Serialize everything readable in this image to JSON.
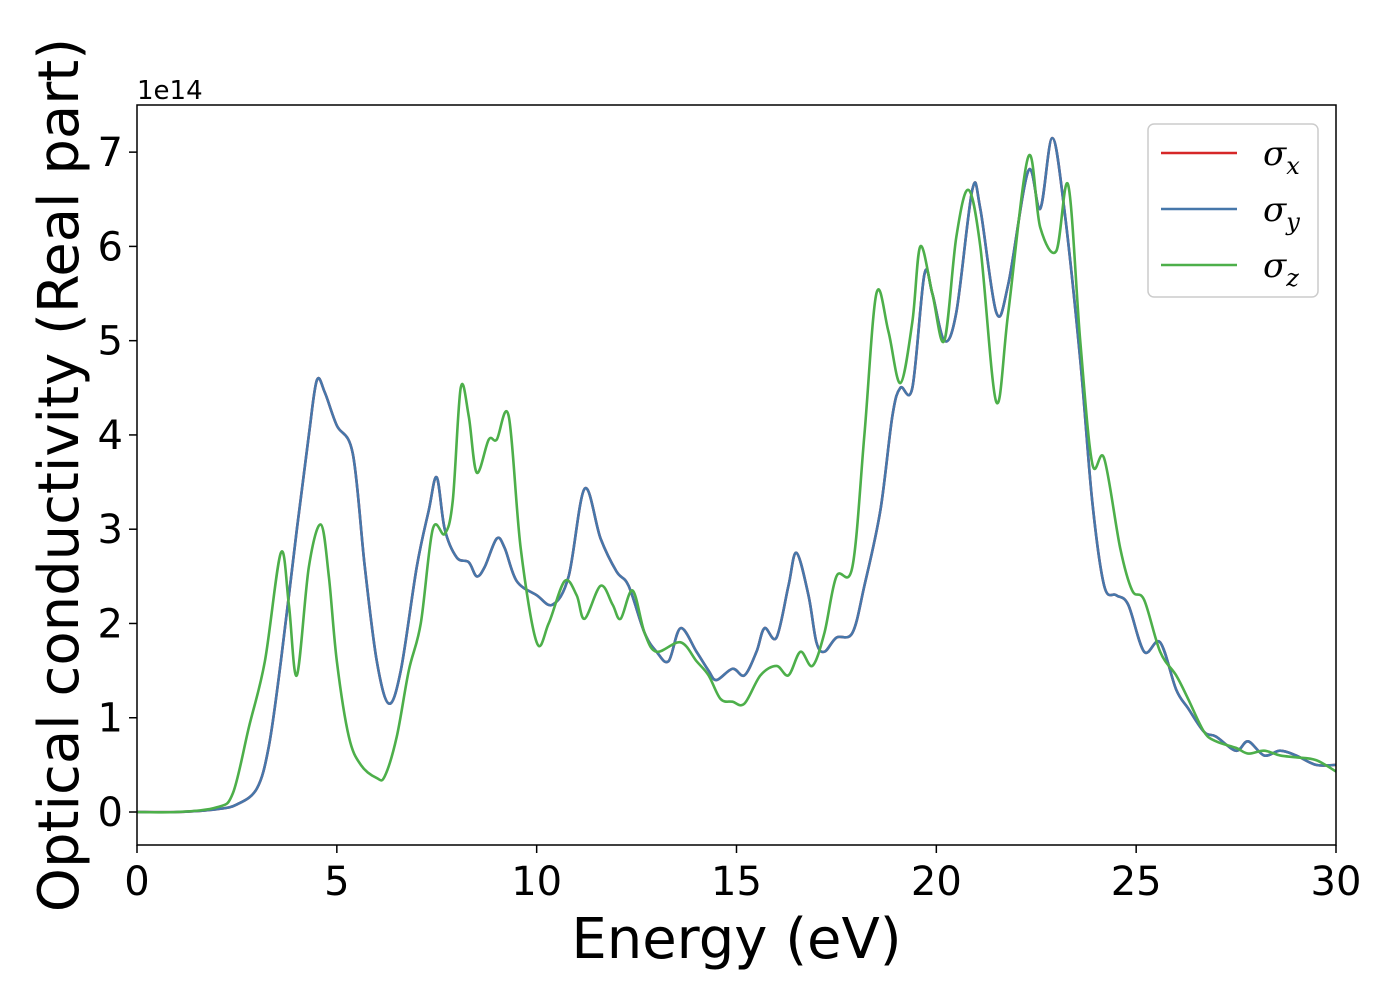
{
  "chart_data": {
    "type": "line",
    "title": "",
    "xlabel": "Energy (eV)",
    "ylabel": "Optical conductivity (Real part)",
    "y_offset_label": "1e14",
    "xlim": [
      0,
      30
    ],
    "ylim": [
      -0.35,
      7.5
    ],
    "xticks": [
      "0",
      "5",
      "10",
      "15",
      "20",
      "25",
      "30"
    ],
    "yticks": [
      "0",
      "1",
      "2",
      "3",
      "4",
      "5",
      "6",
      "7"
    ],
    "grid": false,
    "legend": "top-right",
    "series": [
      {
        "name": "σx",
        "legend_symbol": "σ",
        "legend_sub": "x",
        "color": "#d62728",
        "points": [
          [
            0,
            0
          ],
          [
            1,
            0
          ],
          [
            2,
            0.03
          ],
          [
            2.5,
            0.08
          ],
          [
            3,
            0.25
          ],
          [
            3.3,
            0.7
          ],
          [
            3.6,
            1.6
          ],
          [
            4,
            3.0
          ],
          [
            4.3,
            4.0
          ],
          [
            4.5,
            4.58
          ],
          [
            4.7,
            4.45
          ],
          [
            5,
            4.1
          ],
          [
            5.4,
            3.8
          ],
          [
            5.7,
            2.6
          ],
          [
            6,
            1.6
          ],
          [
            6.3,
            1.15
          ],
          [
            6.6,
            1.5
          ],
          [
            7,
            2.6
          ],
          [
            7.3,
            3.2
          ],
          [
            7.5,
            3.55
          ],
          [
            7.7,
            3.0
          ],
          [
            8,
            2.7
          ],
          [
            8.3,
            2.65
          ],
          [
            8.5,
            2.5
          ],
          [
            8.7,
            2.6
          ],
          [
            9,
            2.9
          ],
          [
            9.2,
            2.8
          ],
          [
            9.5,
            2.45
          ],
          [
            10,
            2.3
          ],
          [
            10.4,
            2.2
          ],
          [
            10.8,
            2.5
          ],
          [
            11.2,
            3.43
          ],
          [
            11.6,
            2.9
          ],
          [
            12,
            2.55
          ],
          [
            12.3,
            2.4
          ],
          [
            12.7,
            1.9
          ],
          [
            13,
            1.7
          ],
          [
            13.3,
            1.6
          ],
          [
            13.6,
            1.95
          ],
          [
            14,
            1.7
          ],
          [
            14.3,
            1.5
          ],
          [
            14.5,
            1.4
          ],
          [
            14.9,
            1.52
          ],
          [
            15.2,
            1.45
          ],
          [
            15.5,
            1.7
          ],
          [
            15.7,
            1.95
          ],
          [
            16,
            1.85
          ],
          [
            16.3,
            2.4
          ],
          [
            16.5,
            2.75
          ],
          [
            16.8,
            2.3
          ],
          [
            17,
            1.8
          ],
          [
            17.2,
            1.7
          ],
          [
            17.5,
            1.85
          ],
          [
            17.9,
            1.9
          ],
          [
            18.2,
            2.4
          ],
          [
            18.6,
            3.2
          ],
          [
            18.9,
            4.2
          ],
          [
            19.1,
            4.5
          ],
          [
            19.4,
            4.5
          ],
          [
            19.7,
            5.7
          ],
          [
            19.9,
            5.5
          ],
          [
            20.2,
            5.0
          ],
          [
            20.5,
            5.3
          ],
          [
            20.9,
            6.6
          ],
          [
            21.1,
            6.4
          ],
          [
            21.5,
            5.3
          ],
          [
            21.8,
            5.6
          ],
          [
            22.3,
            6.8
          ],
          [
            22.6,
            6.4
          ],
          [
            22.9,
            7.15
          ],
          [
            23.2,
            6.4
          ],
          [
            23.6,
            4.8
          ],
          [
            23.9,
            3.3
          ],
          [
            24.2,
            2.4
          ],
          [
            24.5,
            2.3
          ],
          [
            24.8,
            2.2
          ],
          [
            25.2,
            1.7
          ],
          [
            25.6,
            1.8
          ],
          [
            26,
            1.3
          ],
          [
            26.3,
            1.1
          ],
          [
            26.7,
            0.85
          ],
          [
            27,
            0.8
          ],
          [
            27.5,
            0.65
          ],
          [
            27.8,
            0.75
          ],
          [
            28.2,
            0.6
          ],
          [
            28.6,
            0.65
          ],
          [
            29,
            0.6
          ],
          [
            29.5,
            0.5
          ],
          [
            30,
            0.5
          ]
        ]
      },
      {
        "name": "σy",
        "legend_symbol": "σ",
        "legend_sub": "y",
        "color": "#4677aa",
        "points": [
          [
            0,
            0
          ],
          [
            1,
            0
          ],
          [
            2,
            0.03
          ],
          [
            2.5,
            0.08
          ],
          [
            3,
            0.25
          ],
          [
            3.3,
            0.7
          ],
          [
            3.6,
            1.6
          ],
          [
            4,
            3.0
          ],
          [
            4.3,
            4.0
          ],
          [
            4.5,
            4.58
          ],
          [
            4.7,
            4.45
          ],
          [
            5,
            4.1
          ],
          [
            5.4,
            3.8
          ],
          [
            5.7,
            2.6
          ],
          [
            6,
            1.6
          ],
          [
            6.3,
            1.15
          ],
          [
            6.6,
            1.5
          ],
          [
            7,
            2.6
          ],
          [
            7.3,
            3.2
          ],
          [
            7.5,
            3.55
          ],
          [
            7.7,
            3.0
          ],
          [
            8,
            2.7
          ],
          [
            8.3,
            2.65
          ],
          [
            8.5,
            2.5
          ],
          [
            8.7,
            2.6
          ],
          [
            9,
            2.9
          ],
          [
            9.2,
            2.8
          ],
          [
            9.5,
            2.45
          ],
          [
            10,
            2.3
          ],
          [
            10.4,
            2.2
          ],
          [
            10.8,
            2.5
          ],
          [
            11.2,
            3.43
          ],
          [
            11.6,
            2.9
          ],
          [
            12,
            2.55
          ],
          [
            12.3,
            2.4
          ],
          [
            12.7,
            1.9
          ],
          [
            13,
            1.7
          ],
          [
            13.3,
            1.6
          ],
          [
            13.6,
            1.95
          ],
          [
            14,
            1.7
          ],
          [
            14.3,
            1.5
          ],
          [
            14.5,
            1.4
          ],
          [
            14.9,
            1.52
          ],
          [
            15.2,
            1.45
          ],
          [
            15.5,
            1.7
          ],
          [
            15.7,
            1.95
          ],
          [
            16,
            1.85
          ],
          [
            16.3,
            2.4
          ],
          [
            16.5,
            2.75
          ],
          [
            16.8,
            2.3
          ],
          [
            17,
            1.8
          ],
          [
            17.2,
            1.7
          ],
          [
            17.5,
            1.85
          ],
          [
            17.9,
            1.9
          ],
          [
            18.2,
            2.4
          ],
          [
            18.6,
            3.2
          ],
          [
            18.9,
            4.2
          ],
          [
            19.1,
            4.5
          ],
          [
            19.4,
            4.5
          ],
          [
            19.7,
            5.7
          ],
          [
            19.9,
            5.5
          ],
          [
            20.2,
            5.0
          ],
          [
            20.5,
            5.3
          ],
          [
            20.9,
            6.6
          ],
          [
            21.1,
            6.4
          ],
          [
            21.5,
            5.3
          ],
          [
            21.8,
            5.6
          ],
          [
            22.3,
            6.8
          ],
          [
            22.6,
            6.4
          ],
          [
            22.9,
            7.15
          ],
          [
            23.2,
            6.4
          ],
          [
            23.6,
            4.8
          ],
          [
            23.9,
            3.3
          ],
          [
            24.2,
            2.4
          ],
          [
            24.5,
            2.3
          ],
          [
            24.8,
            2.2
          ],
          [
            25.2,
            1.7
          ],
          [
            25.6,
            1.8
          ],
          [
            26,
            1.3
          ],
          [
            26.3,
            1.1
          ],
          [
            26.7,
            0.85
          ],
          [
            27,
            0.8
          ],
          [
            27.5,
            0.65
          ],
          [
            27.8,
            0.75
          ],
          [
            28.2,
            0.6
          ],
          [
            28.6,
            0.65
          ],
          [
            29,
            0.6
          ],
          [
            29.5,
            0.5
          ],
          [
            30,
            0.5
          ]
        ]
      },
      {
        "name": "σz",
        "legend_symbol": "σ",
        "legend_sub": "z",
        "color": "#4daf4a",
        "points": [
          [
            0,
            0
          ],
          [
            1,
            0
          ],
          [
            2,
            0.05
          ],
          [
            2.4,
            0.2
          ],
          [
            2.8,
            0.9
          ],
          [
            3.2,
            1.6
          ],
          [
            3.6,
            2.75
          ],
          [
            3.8,
            2.2
          ],
          [
            4,
            1.45
          ],
          [
            4.3,
            2.6
          ],
          [
            4.6,
            3.05
          ],
          [
            4.8,
            2.5
          ],
          [
            5,
            1.6
          ],
          [
            5.3,
            0.8
          ],
          [
            5.6,
            0.5
          ],
          [
            6,
            0.36
          ],
          [
            6.2,
            0.38
          ],
          [
            6.5,
            0.8
          ],
          [
            6.8,
            1.5
          ],
          [
            7.1,
            2.0
          ],
          [
            7.4,
            3.0
          ],
          [
            7.7,
            2.95
          ],
          [
            7.9,
            3.3
          ],
          [
            8.1,
            4.5
          ],
          [
            8.3,
            4.2
          ],
          [
            8.5,
            3.6
          ],
          [
            8.8,
            3.95
          ],
          [
            9,
            3.95
          ],
          [
            9.3,
            4.2
          ],
          [
            9.6,
            2.8
          ],
          [
            10,
            1.8
          ],
          [
            10.3,
            2.0
          ],
          [
            10.7,
            2.45
          ],
          [
            11,
            2.3
          ],
          [
            11.2,
            2.05
          ],
          [
            11.6,
            2.4
          ],
          [
            11.9,
            2.2
          ],
          [
            12.1,
            2.05
          ],
          [
            12.4,
            2.35
          ],
          [
            12.7,
            1.9
          ],
          [
            13,
            1.7
          ],
          [
            13.6,
            1.8
          ],
          [
            14,
            1.6
          ],
          [
            14.3,
            1.45
          ],
          [
            14.6,
            1.2
          ],
          [
            14.9,
            1.17
          ],
          [
            15.2,
            1.15
          ],
          [
            15.6,
            1.45
          ],
          [
            16,
            1.55
          ],
          [
            16.3,
            1.45
          ],
          [
            16.6,
            1.7
          ],
          [
            16.9,
            1.55
          ],
          [
            17.2,
            1.9
          ],
          [
            17.5,
            2.5
          ],
          [
            17.9,
            2.6
          ],
          [
            18.2,
            4.0
          ],
          [
            18.5,
            5.5
          ],
          [
            18.8,
            5.1
          ],
          [
            19.1,
            4.55
          ],
          [
            19.4,
            5.2
          ],
          [
            19.6,
            6.0
          ],
          [
            19.9,
            5.5
          ],
          [
            20.2,
            5.0
          ],
          [
            20.5,
            6.1
          ],
          [
            20.8,
            6.6
          ],
          [
            21.1,
            6.0
          ],
          [
            21.5,
            4.35
          ],
          [
            21.8,
            5.3
          ],
          [
            22.3,
            6.95
          ],
          [
            22.6,
            6.2
          ],
          [
            23,
            5.95
          ],
          [
            23.3,
            6.65
          ],
          [
            23.6,
            5.0
          ],
          [
            23.9,
            3.7
          ],
          [
            24.2,
            3.75
          ],
          [
            24.6,
            2.8
          ],
          [
            24.9,
            2.35
          ],
          [
            25.2,
            2.25
          ],
          [
            25.6,
            1.7
          ],
          [
            26,
            1.45
          ],
          [
            26.3,
            1.2
          ],
          [
            26.7,
            0.85
          ],
          [
            27,
            0.75
          ],
          [
            27.5,
            0.68
          ],
          [
            27.8,
            0.62
          ],
          [
            28.2,
            0.65
          ],
          [
            28.6,
            0.6
          ],
          [
            29,
            0.58
          ],
          [
            29.5,
            0.55
          ],
          [
            30,
            0.43
          ]
        ]
      }
    ]
  }
}
